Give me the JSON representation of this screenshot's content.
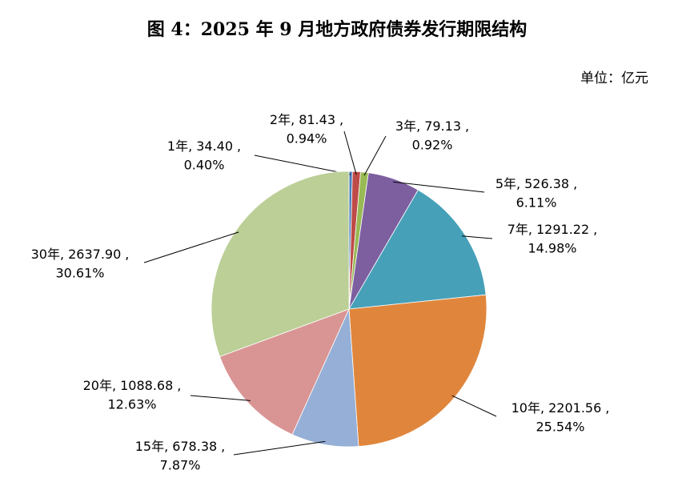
{
  "chart_data": {
    "type": "pie",
    "title": "图 4：2025 年 9 月地方政府债券发行期限结构",
    "unit": "单位：亿元",
    "separator": ",",
    "categories": [
      "1年",
      "2年",
      "3年",
      "5年",
      "7年",
      "10年",
      "15年",
      "20年",
      "30年"
    ],
    "values": [
      34.4,
      81.43,
      79.13,
      526.38,
      1291.22,
      2201.56,
      678.38,
      1088.68,
      2637.9
    ],
    "value_labels": [
      "34.40",
      "81.43",
      "79.13",
      "526.38",
      "1291.22",
      "2201.56",
      "678.38",
      "1088.68",
      "2637.90"
    ],
    "percents": [
      0.4,
      0.94,
      0.92,
      6.11,
      14.98,
      25.54,
      7.87,
      12.63,
      30.61
    ],
    "percent_labels": [
      "0.40%",
      "0.94%",
      "0.92%",
      "6.11%",
      "14.98%",
      "25.54%",
      "7.87%",
      "12.63%",
      "30.61%"
    ],
    "colors": [
      "#4a7ebb",
      "#be4b48",
      "#98b954",
      "#7d5fa0",
      "#46a0b8",
      "#e0863c",
      "#95afd6",
      "#d99594",
      "#bccf97"
    ]
  }
}
